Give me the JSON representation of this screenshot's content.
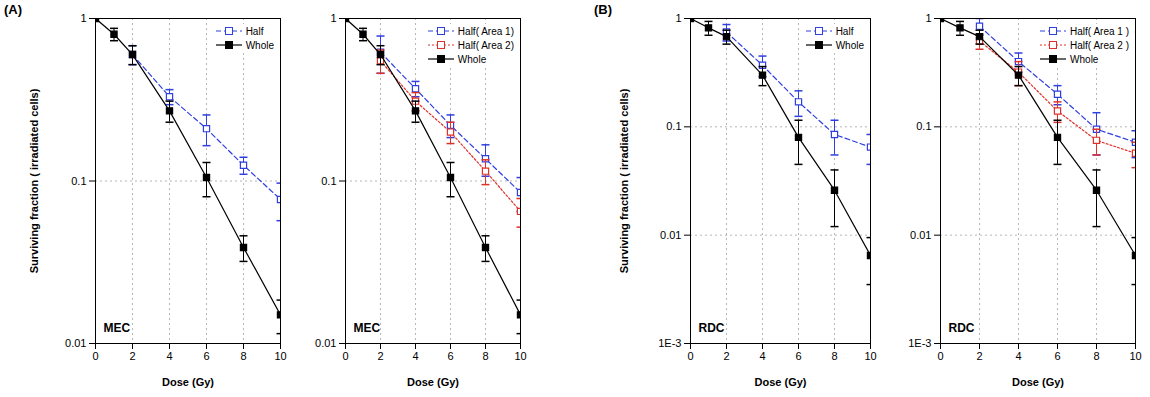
{
  "chart_data": [
    {
      "type": "line",
      "panel_label": "(A)",
      "annotation": "MEC",
      "xlabel": "Dose (Gy)",
      "ylabel": "Surviving fraction ( irradiated cells)",
      "log": "y",
      "grid": true,
      "legend": "upper right",
      "xlim": [
        0,
        10
      ],
      "xticks": [
        0,
        2,
        4,
        6,
        8,
        10
      ],
      "ylim": [
        0.01,
        1
      ],
      "yticks": [
        0.01,
        0.1,
        1
      ],
      "series": [
        {
          "name": "Half",
          "color": "#2f3fe0",
          "marker": "square-open",
          "line_style": "dashed",
          "x": [
            2,
            4,
            6,
            8,
            10
          ],
          "values": [
            0.6,
            0.33,
            0.21,
            0.125,
            0.077
          ],
          "errors": [
            0.08,
            0.035,
            0.045,
            0.015,
            0.02
          ]
        },
        {
          "name": "Whole",
          "color": "#000000",
          "marker": "square",
          "line_style": "solid",
          "x": [
            0,
            1,
            2,
            4,
            6,
            8,
            10
          ],
          "values": [
            1,
            0.8,
            0.6,
            0.27,
            0.105,
            0.039,
            0.015
          ],
          "errors": [
            null,
            0.07,
            0.08,
            0.04,
            0.025,
            0.007,
            0.0035
          ]
        }
      ]
    },
    {
      "type": "line",
      "annotation": "MEC",
      "xlabel": "Dose (Gy)",
      "log": "y",
      "grid": true,
      "legend": "upper right",
      "xlim": [
        0,
        10
      ],
      "xticks": [
        0,
        2,
        4,
        6,
        8,
        10
      ],
      "ylim": [
        0.01,
        1
      ],
      "yticks": [
        0.01,
        0.1,
        1
      ],
      "series": [
        {
          "name": "Half( Area 1)",
          "color": "#2f3fe0",
          "marker": "square-open",
          "line_style": "dashed",
          "x": [
            2,
            4,
            6,
            8,
            10
          ],
          "values": [
            0.62,
            0.37,
            0.22,
            0.137,
            0.085
          ],
          "errors": [
            0.16,
            0.04,
            0.035,
            0.03,
            0.02
          ]
        },
        {
          "name": "Half( Area 2)",
          "color": "#e0302a",
          "marker": "square-open",
          "line_style": "dotted",
          "x": [
            2,
            4,
            6,
            8,
            10
          ],
          "values": [
            0.55,
            0.31,
            0.2,
            0.115,
            0.065
          ],
          "errors": [
            0.09,
            0.04,
            0.03,
            0.02,
            0.013
          ]
        },
        {
          "name": "Whole",
          "color": "#000000",
          "marker": "square",
          "line_style": "solid",
          "x": [
            0,
            1,
            2,
            4,
            6,
            8,
            10
          ],
          "values": [
            1,
            0.8,
            0.6,
            0.27,
            0.105,
            0.039,
            0.015
          ],
          "errors": [
            null,
            0.07,
            0.08,
            0.04,
            0.025,
            0.007,
            0.0035
          ]
        }
      ]
    },
    {
      "type": "line",
      "panel_label": "(B)",
      "annotation": "RDC",
      "xlabel": "Dose (Gy)",
      "ylabel": "Surviving fraction ( irradiated cells)",
      "log": "y",
      "grid": true,
      "legend": "upper right",
      "xlim": [
        0,
        10
      ],
      "xticks": [
        0,
        2,
        4,
        6,
        8,
        10
      ],
      "ylim": [
        0.001,
        1
      ],
      "yticks": [
        {
          "value": 0.001,
          "label": "1E-3"
        },
        0.01,
        0.1,
        1
      ],
      "series": [
        {
          "name": "Half",
          "color": "#2f3fe0",
          "marker": "square-open",
          "line_style": "dashed",
          "x": [
            2,
            4,
            6,
            8,
            10
          ],
          "values": [
            0.75,
            0.37,
            0.17,
            0.085,
            0.065
          ],
          "errors": [
            0.13,
            0.08,
            0.045,
            0.03,
            0.02
          ]
        },
        {
          "name": "Whole",
          "color": "#000000",
          "marker": "square",
          "line_style": "solid",
          "x": [
            0,
            1,
            2,
            4,
            6,
            8,
            10
          ],
          "values": [
            1,
            0.82,
            0.68,
            0.3,
            0.08,
            0.026,
            0.0065
          ],
          "errors": [
            null,
            0.12,
            0.1,
            0.06,
            0.035,
            0.014,
            0.003
          ]
        }
      ]
    },
    {
      "type": "line",
      "annotation": "RDC",
      "xlabel": "Dose (Gy)",
      "log": "y",
      "grid": true,
      "legend": "upper right",
      "xlim": [
        0,
        10
      ],
      "xticks": [
        0,
        2,
        4,
        6,
        8,
        10
      ],
      "ylim": [
        0.001,
        1
      ],
      "yticks": [
        {
          "value": 0.001,
          "label": "1E-3"
        },
        0.01,
        0.1,
        1
      ],
      "series": [
        {
          "name": "Half( Area 1 )",
          "color": "#2f3fe0",
          "marker": "square-open",
          "line_style": "dashed",
          "x": [
            2,
            4,
            6,
            8,
            10
          ],
          "values": [
            0.85,
            0.4,
            0.2,
            0.095,
            0.072
          ],
          "errors": [
            0.15,
            0.08,
            0.04,
            0.04,
            0.02
          ]
        },
        {
          "name": "Half( Area 2 )",
          "color": "#e0302a",
          "marker": "square-open",
          "line_style": "dotted",
          "x": [
            2,
            4,
            6,
            8,
            10
          ],
          "values": [
            0.62,
            0.32,
            0.14,
            0.075,
            0.057
          ],
          "errors": [
            0.1,
            0.08,
            0.03,
            0.02,
            0.015
          ]
        },
        {
          "name": "Whole",
          "color": "#000000",
          "marker": "square",
          "line_style": "solid",
          "x": [
            0,
            1,
            2,
            4,
            6,
            8,
            10
          ],
          "values": [
            1,
            0.82,
            0.68,
            0.3,
            0.08,
            0.026,
            0.0065
          ],
          "errors": [
            null,
            0.12,
            0.1,
            0.06,
            0.035,
            0.014,
            0.003
          ]
        }
      ]
    }
  ]
}
